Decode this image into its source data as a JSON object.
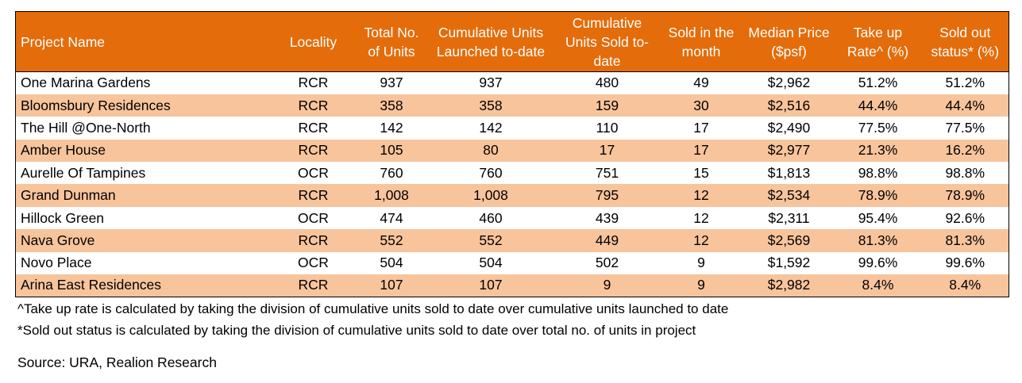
{
  "table": {
    "headers": [
      "Project Name",
      "Locality",
      "Total No. of Units",
      "Cumulative Units Launched to-date",
      "Cumulative Units Sold to-date",
      "Sold in the month",
      "Median Price ($psf)",
      "Take up Rate^ (%)",
      "Sold out status* (%)"
    ],
    "rows": [
      [
        "One Marina Gardens",
        "RCR",
        "937",
        "937",
        "480",
        "49",
        "$2,962",
        "51.2%",
        "51.2%"
      ],
      [
        "Bloomsbury Residences",
        "RCR",
        "358",
        "358",
        "159",
        "30",
        "$2,516",
        "44.4%",
        "44.4%"
      ],
      [
        "The Hill @One-North",
        "RCR",
        "142",
        "142",
        "110",
        "17",
        "$2,490",
        "77.5%",
        "77.5%"
      ],
      [
        "Amber House",
        "RCR",
        "105",
        "80",
        "17",
        "17",
        "$2,977",
        "21.3%",
        "16.2%"
      ],
      [
        "Aurelle Of Tampines",
        "OCR",
        "760",
        "760",
        "751",
        "15",
        "$1,813",
        "98.8%",
        "98.8%"
      ],
      [
        "Grand Dunman",
        "RCR",
        "1,008",
        "1,008",
        "795",
        "12",
        "$2,534",
        "78.9%",
        "78.9%"
      ],
      [
        "Hillock Green",
        "OCR",
        "474",
        "460",
        "439",
        "12",
        "$2,311",
        "95.4%",
        "92.6%"
      ],
      [
        "Nava Grove",
        "RCR",
        "552",
        "552",
        "449",
        "12",
        "$2,569",
        "81.3%",
        "81.3%"
      ],
      [
        "Novo Place",
        "OCR",
        "504",
        "504",
        "502",
        "9",
        "$1,592",
        "99.6%",
        "99.6%"
      ],
      [
        "Arina East Residences",
        "RCR",
        "107",
        "107",
        "9",
        "9",
        "$2,982",
        "8.4%",
        "8.4%"
      ]
    ]
  },
  "notes": [
    "^Take up rate is calculated by taking the division of cumulative units sold to date over cumulative units launched to date",
    "*Sold out status is calculated by taking the division of cumulative units sold to date over total no. of units in project"
  ],
  "source": "Source: URA, Realion Research",
  "colors": {
    "header_bg": "#e46c0a",
    "header_text": "#ffffff",
    "band": "#f8c49c"
  }
}
